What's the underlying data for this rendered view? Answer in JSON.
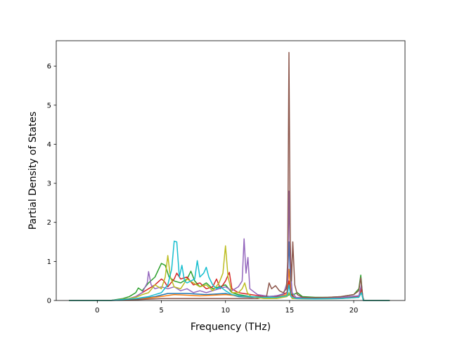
{
  "chart_data": {
    "type": "line",
    "xlabel": "Frequency (THz)",
    "ylabel": "Partial Density of States",
    "xlim": [
      -3.2,
      24.0
    ],
    "ylim": [
      0,
      6.65
    ],
    "xticks": [
      0,
      5,
      10,
      15,
      20
    ],
    "yticks": [
      0,
      1,
      2,
      3,
      4,
      5,
      6
    ],
    "grid": false,
    "legend": "none",
    "series": [
      {
        "color": "#1f77b4",
        "points": [
          [
            -2.2,
            0
          ],
          [
            1,
            0
          ],
          [
            3,
            0.03
          ],
          [
            4.5,
            0.1
          ],
          [
            5.5,
            0.18
          ],
          [
            7,
            0.18
          ],
          [
            8.5,
            0.15
          ],
          [
            10,
            0.18
          ],
          [
            11,
            0.1
          ],
          [
            12,
            0.08
          ],
          [
            13.3,
            0.1
          ],
          [
            14,
            0.12
          ],
          [
            14.8,
            0.2
          ],
          [
            14.95,
            1.5
          ],
          [
            15.1,
            0.3
          ],
          [
            15.3,
            0.08
          ],
          [
            17,
            0.05
          ],
          [
            19,
            0.07
          ],
          [
            20.4,
            0.12
          ],
          [
            20.6,
            0.3
          ],
          [
            20.75,
            0
          ],
          [
            22.8,
            0
          ]
        ]
      },
      {
        "color": "#ff7f0e",
        "points": [
          [
            -2.2,
            0
          ],
          [
            1,
            0
          ],
          [
            3,
            0.02
          ],
          [
            4.5,
            0.08
          ],
          [
            6,
            0.15
          ],
          [
            8,
            0.12
          ],
          [
            10,
            0.15
          ],
          [
            11.5,
            0.1
          ],
          [
            13.5,
            0.08
          ],
          [
            14.8,
            0.15
          ],
          [
            14.95,
            0.8
          ],
          [
            15.1,
            0.2
          ],
          [
            15.3,
            0.05
          ],
          [
            17,
            0.04
          ],
          [
            19,
            0.05
          ],
          [
            20.4,
            0.1
          ],
          [
            20.6,
            0.25
          ],
          [
            20.75,
            0
          ],
          [
            22.8,
            0
          ]
        ]
      },
      {
        "color": "#2ca02c",
        "points": [
          [
            -2.2,
            0
          ],
          [
            1,
            0
          ],
          [
            2,
            0.05
          ],
          [
            2.5,
            0.1
          ],
          [
            3,
            0.2
          ],
          [
            3.2,
            0.32
          ],
          [
            3.5,
            0.25
          ],
          [
            4,
            0.45
          ],
          [
            4.5,
            0.6
          ],
          [
            5,
            0.95
          ],
          [
            5.3,
            0.9
          ],
          [
            5.6,
            0.6
          ],
          [
            6,
            0.5
          ],
          [
            6.5,
            0.45
          ],
          [
            7,
            0.55
          ],
          [
            7.3,
            0.75
          ],
          [
            7.6,
            0.5
          ],
          [
            8,
            0.35
          ],
          [
            8.5,
            0.45
          ],
          [
            9,
            0.3
          ],
          [
            9.5,
            0.35
          ],
          [
            10,
            0.4
          ],
          [
            10.5,
            0.2
          ],
          [
            11,
            0.15
          ],
          [
            12,
            0.1
          ],
          [
            13,
            0.08
          ],
          [
            14,
            0.08
          ],
          [
            14.8,
            0.12
          ],
          [
            15,
            0.15
          ],
          [
            15.3,
            0.15
          ],
          [
            15.6,
            0.2
          ],
          [
            16,
            0.1
          ],
          [
            17,
            0.08
          ],
          [
            18,
            0.08
          ],
          [
            19,
            0.1
          ],
          [
            20,
            0.15
          ],
          [
            20.4,
            0.3
          ],
          [
            20.55,
            0.65
          ],
          [
            20.7,
            0.1
          ],
          [
            20.8,
            0
          ],
          [
            22.8,
            0
          ]
        ]
      },
      {
        "color": "#d62728",
        "points": [
          [
            -2.2,
            0
          ],
          [
            1,
            0
          ],
          [
            2.5,
            0.05
          ],
          [
            3,
            0.1
          ],
          [
            3.5,
            0.2
          ],
          [
            4,
            0.3
          ],
          [
            4.5,
            0.4
          ],
          [
            5,
            0.55
          ],
          [
            5.2,
            0.5
          ],
          [
            5.5,
            0.35
          ],
          [
            6,
            0.55
          ],
          [
            6.2,
            0.7
          ],
          [
            6.5,
            0.55
          ],
          [
            7,
            0.6
          ],
          [
            7.5,
            0.4
          ],
          [
            8,
            0.45
          ],
          [
            8.5,
            0.3
          ],
          [
            9,
            0.35
          ],
          [
            9.3,
            0.55
          ],
          [
            9.6,
            0.3
          ],
          [
            10,
            0.5
          ],
          [
            10.3,
            0.72
          ],
          [
            10.5,
            0.3
          ],
          [
            11,
            0.2
          ],
          [
            12,
            0.15
          ],
          [
            13,
            0.1
          ],
          [
            14,
            0.1
          ],
          [
            14.8,
            0.2
          ],
          [
            14.95,
            0.5
          ],
          [
            15.1,
            0.15
          ],
          [
            15.5,
            0.05
          ],
          [
            17,
            0.05
          ],
          [
            19,
            0.06
          ],
          [
            20.4,
            0.1
          ],
          [
            20.6,
            0.3
          ],
          [
            20.75,
            0
          ],
          [
            22.8,
            0
          ]
        ]
      },
      {
        "color": "#9467bd",
        "points": [
          [
            -2.2,
            0
          ],
          [
            1,
            0
          ],
          [
            2.5,
            0.05
          ],
          [
            3,
            0.1
          ],
          [
            3.5,
            0.2
          ],
          [
            3.9,
            0.45
          ],
          [
            4,
            0.74
          ],
          [
            4.2,
            0.4
          ],
          [
            4.5,
            0.3
          ],
          [
            5,
            0.35
          ],
          [
            5.5,
            0.3
          ],
          [
            6,
            0.35
          ],
          [
            6.5,
            0.25
          ],
          [
            7,
            0.3
          ],
          [
            7.5,
            0.2
          ],
          [
            8,
            0.25
          ],
          [
            8.5,
            0.2
          ],
          [
            9,
            0.25
          ],
          [
            9.5,
            0.3
          ],
          [
            10,
            0.35
          ],
          [
            10.5,
            0.25
          ],
          [
            11,
            0.35
          ],
          [
            11.3,
            0.5
          ],
          [
            11.45,
            1.58
          ],
          [
            11.6,
            0.7
          ],
          [
            11.75,
            1.1
          ],
          [
            11.9,
            0.3
          ],
          [
            12.5,
            0.15
          ],
          [
            13.5,
            0.1
          ],
          [
            14.5,
            0.15
          ],
          [
            14.85,
            0.5
          ],
          [
            14.95,
            2.8
          ],
          [
            15.05,
            1
          ],
          [
            15.2,
            0.2
          ],
          [
            15.5,
            0.08
          ],
          [
            17,
            0.06
          ],
          [
            19,
            0.08
          ],
          [
            20.4,
            0.12
          ],
          [
            20.6,
            0.4
          ],
          [
            20.75,
            0
          ],
          [
            22.8,
            0
          ]
        ]
      },
      {
        "color": "#8c564b",
        "points": [
          [
            -2.2,
            0
          ],
          [
            1,
            0
          ],
          [
            3,
            0.02
          ],
          [
            5,
            0.05
          ],
          [
            7,
            0.05
          ],
          [
            9,
            0.05
          ],
          [
            11,
            0.05
          ],
          [
            12.5,
            0.05
          ],
          [
            13.2,
            0.1
          ],
          [
            13.4,
            0.45
          ],
          [
            13.6,
            0.3
          ],
          [
            13.9,
            0.38
          ],
          [
            14.2,
            0.25
          ],
          [
            14.5,
            0.2
          ],
          [
            14.75,
            0.3
          ],
          [
            14.85,
            1
          ],
          [
            14.95,
            6.35
          ],
          [
            15.05,
            1.5
          ],
          [
            15.15,
            0.5
          ],
          [
            15.25,
            1.5
          ],
          [
            15.4,
            0.4
          ],
          [
            15.6,
            0.15
          ],
          [
            16,
            0.08
          ],
          [
            17,
            0.07
          ],
          [
            18,
            0.08
          ],
          [
            19,
            0.1
          ],
          [
            20,
            0.15
          ],
          [
            20.4,
            0.25
          ],
          [
            20.55,
            0.58
          ],
          [
            20.7,
            0.1
          ],
          [
            20.8,
            0
          ],
          [
            22.8,
            0
          ]
        ]
      },
      {
        "color": "#bcbd22",
        "points": [
          [
            -2.2,
            0
          ],
          [
            1,
            0
          ],
          [
            2.5,
            0.05
          ],
          [
            3,
            0.08
          ],
          [
            3.5,
            0.15
          ],
          [
            4,
            0.2
          ],
          [
            4.5,
            0.4
          ],
          [
            5,
            0.3
          ],
          [
            5.3,
            0.6
          ],
          [
            5.5,
            1.15
          ],
          [
            5.7,
            0.6
          ],
          [
            6,
            0.35
          ],
          [
            6.5,
            0.3
          ],
          [
            7,
            0.55
          ],
          [
            7.5,
            0.45
          ],
          [
            8,
            0.35
          ],
          [
            8.5,
            0.4
          ],
          [
            9,
            0.25
          ],
          [
            9.5,
            0.45
          ],
          [
            9.8,
            0.7
          ],
          [
            10,
            1.4
          ],
          [
            10.2,
            0.6
          ],
          [
            10.5,
            0.2
          ],
          [
            11,
            0.2
          ],
          [
            11.3,
            0.3
          ],
          [
            11.5,
            0.45
          ],
          [
            11.7,
            0.2
          ],
          [
            12,
            0.1
          ],
          [
            13,
            0.05
          ],
          [
            14,
            0.05
          ],
          [
            14.8,
            0.1
          ],
          [
            14.95,
            0.2
          ],
          [
            15.2,
            0.05
          ],
          [
            17,
            0.04
          ],
          [
            19,
            0.05
          ],
          [
            20.4,
            0.08
          ],
          [
            20.6,
            0.2
          ],
          [
            20.75,
            0
          ],
          [
            22.8,
            0
          ]
        ]
      },
      {
        "color": "#17becf",
        "points": [
          [
            -2.2,
            0
          ],
          [
            1,
            0
          ],
          [
            3,
            0.05
          ],
          [
            4,
            0.1
          ],
          [
            5,
            0.2
          ],
          [
            5.5,
            0.4
          ],
          [
            5.8,
            0.8
          ],
          [
            6,
            1.52
          ],
          [
            6.2,
            1.5
          ],
          [
            6.4,
            0.6
          ],
          [
            6.6,
            0.9
          ],
          [
            6.8,
            0.5
          ],
          [
            7,
            0.45
          ],
          [
            7.3,
            0.5
          ],
          [
            7.6,
            0.55
          ],
          [
            7.8,
            1.02
          ],
          [
            8,
            0.6
          ],
          [
            8.3,
            0.7
          ],
          [
            8.5,
            0.85
          ],
          [
            8.7,
            0.6
          ],
          [
            9,
            0.4
          ],
          [
            9.3,
            0.3
          ],
          [
            9.6,
            0.35
          ],
          [
            10,
            0.25
          ],
          [
            10.5,
            0.15
          ],
          [
            11,
            0.12
          ],
          [
            12,
            0.1
          ],
          [
            13,
            0.08
          ],
          [
            14,
            0.08
          ],
          [
            14.8,
            0.12
          ],
          [
            14.95,
            0.4
          ],
          [
            15.1,
            0.1
          ],
          [
            15.5,
            0.05
          ],
          [
            17,
            0.04
          ],
          [
            19,
            0.05
          ],
          [
            20.4,
            0.08
          ],
          [
            20.6,
            0.2
          ],
          [
            20.75,
            0
          ],
          [
            22.8,
            0
          ]
        ]
      }
    ]
  }
}
